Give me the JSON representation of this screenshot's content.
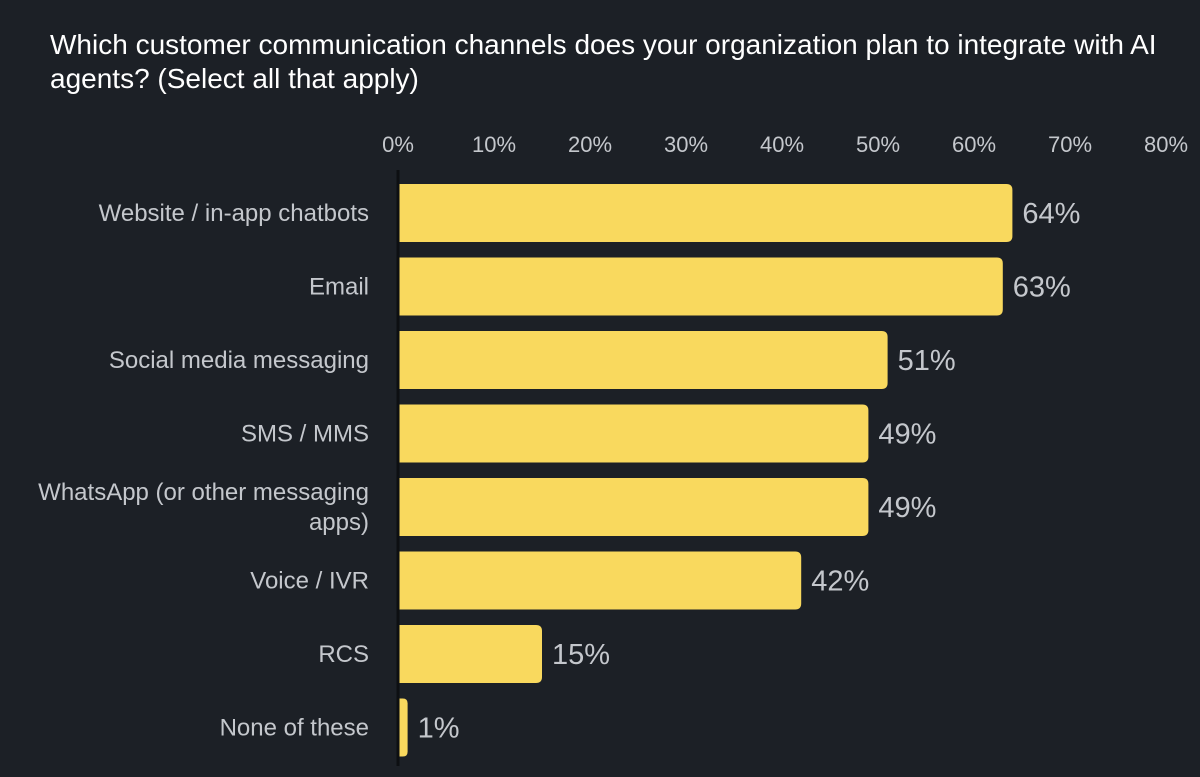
{
  "chart_data": {
    "type": "bar",
    "orientation": "horizontal",
    "title": "Which customer communication channels does your organization plan to integrate with AI agents? (Select all that apply)",
    "xlabel": "",
    "ylabel": "",
    "categories": [
      "Website / in-app chatbots",
      "Email",
      "Social media messaging",
      "SMS / MMS",
      "WhatsApp (or other messaging apps)",
      "Voice / IVR",
      "RCS",
      "None of these"
    ],
    "values": [
      64,
      63,
      51,
      49,
      49,
      42,
      15,
      1
    ],
    "value_labels": [
      "64%",
      "63%",
      "51%",
      "49%",
      "49%",
      "42%",
      "15%",
      "1%"
    ],
    "xlim": [
      0,
      80
    ],
    "x_ticks": [
      0,
      10,
      20,
      30,
      40,
      50,
      60,
      70,
      80
    ],
    "x_tick_labels": [
      "0%",
      "10%",
      "20%",
      "30%",
      "40%",
      "50%",
      "60%",
      "70%",
      "80%"
    ],
    "x_axis_position": "top",
    "grid": false,
    "legend": "none",
    "colors": {
      "background": "#1c2026",
      "bar": "#f9d95e",
      "text": "#c4c7cc",
      "title": "#ffffff",
      "axis_line": "#0d0f12"
    }
  }
}
